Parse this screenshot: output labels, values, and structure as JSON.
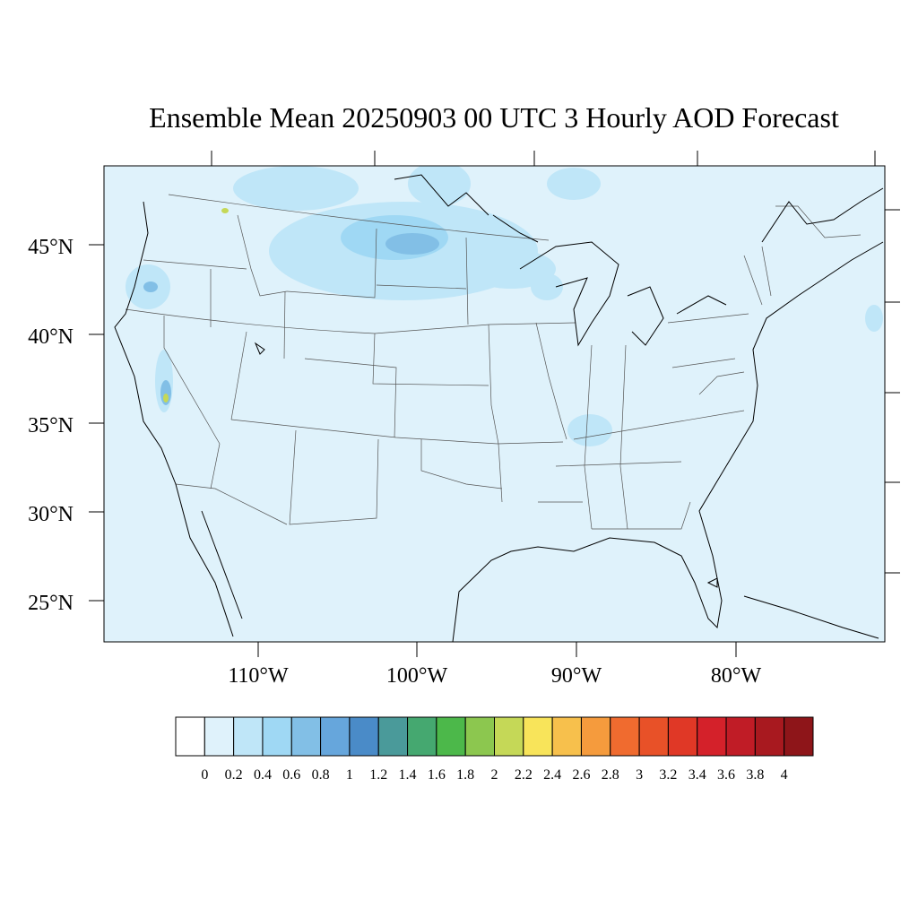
{
  "title": "Ensemble Mean 20250903 00 UTC 3 Hourly AOD Forecast",
  "map": {
    "background_color": "#dff2fb",
    "lat_labels": [
      "45°N",
      "40°N",
      "35°N",
      "30°N",
      "25°N"
    ],
    "lon_labels": [
      "110°W",
      "100°W",
      "90°W",
      "80°W"
    ]
  },
  "colorbar": {
    "labels": [
      "0",
      "0.2",
      "0.4",
      "0.6",
      "0.8",
      "1",
      "1.2",
      "1.4",
      "1.6",
      "1.8",
      "2",
      "2.2",
      "2.4",
      "2.6",
      "2.8",
      "3",
      "3.2",
      "3.4",
      "3.6",
      "3.8",
      "4"
    ],
    "colors": [
      "#ffffff",
      "#dff2fb",
      "#bfe6f8",
      "#9fd8f4",
      "#82bfe6",
      "#66a6dc",
      "#4a8bc8",
      "#4a9a9a",
      "#45a870",
      "#4cb84a",
      "#8cc74f",
      "#c5d857",
      "#f8e45a",
      "#f7c04c",
      "#f59b3d",
      "#f06b2f",
      "#e85128",
      "#e03826",
      "#d4212a",
      "#c01c26",
      "#a8191f",
      "#8e1519"
    ]
  }
}
